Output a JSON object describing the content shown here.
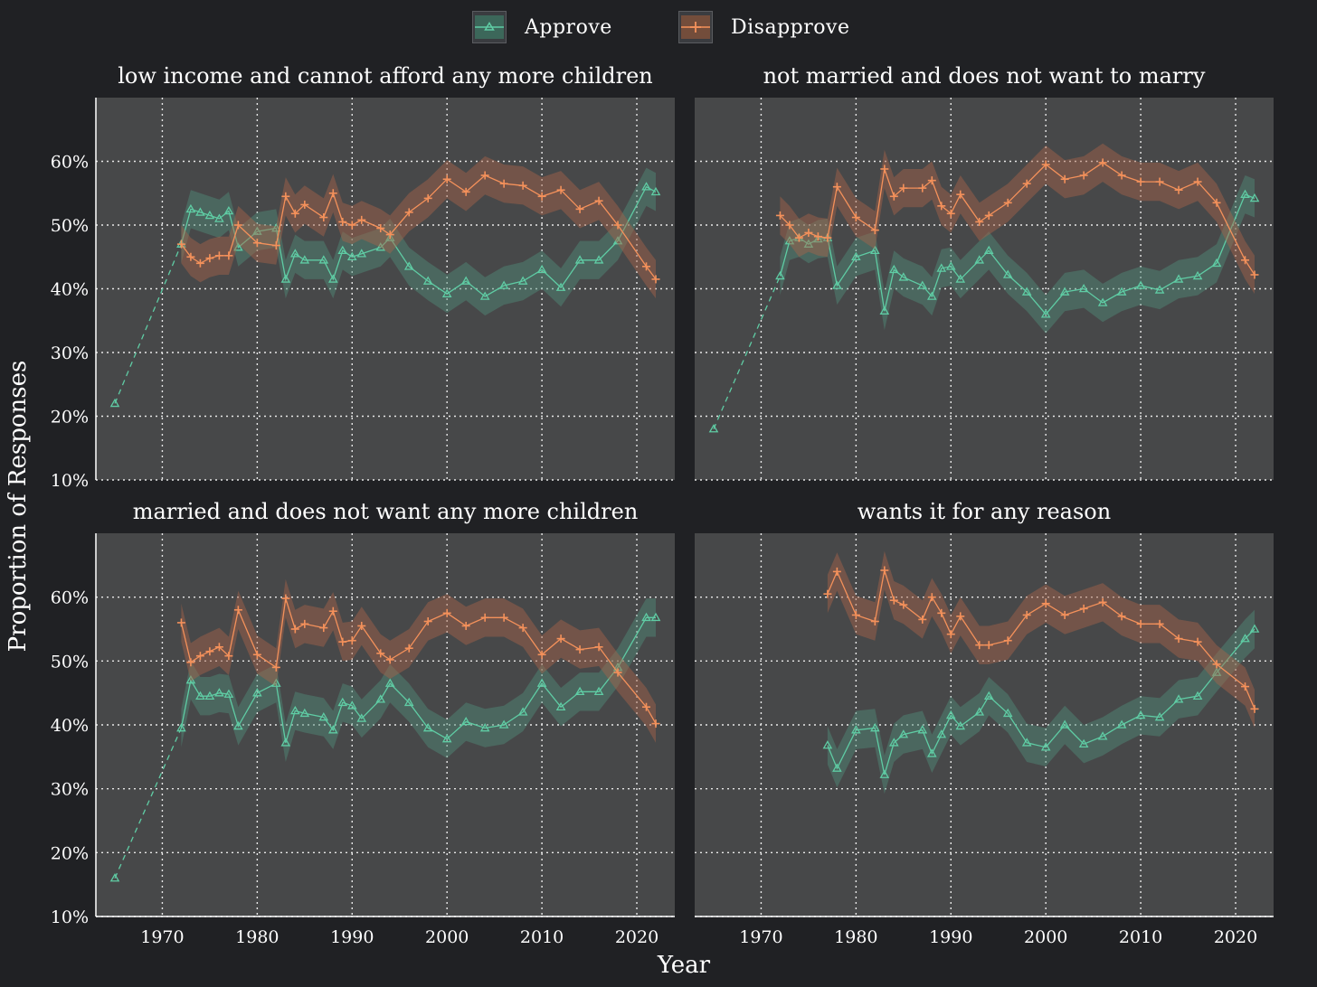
{
  "legend": {
    "approve_label": "Approve",
    "disapprove_label": "Disapprove"
  },
  "colors": {
    "approve": "#5fcca4",
    "disapprove": "#f4915b",
    "background": "#202124",
    "panel": "#474849"
  },
  "chart_data": {
    "type": "line",
    "xlabel": "Year",
    "ylabel": "Proportion of Responses",
    "xlim": [
      1963,
      2024
    ],
    "ylim": [
      10,
      70
    ],
    "x_ticks": [
      1970,
      1980,
      1990,
      2000,
      2010,
      2020
    ],
    "y_ticks": [
      10,
      20,
      30,
      40,
      50,
      60
    ],
    "y_tick_labels": [
      "10%",
      "20%",
      "30%",
      "40%",
      "50%",
      "60%"
    ],
    "grid": true,
    "legend_position": "top",
    "band_halfwidth": 3,
    "panels": [
      {
        "title": "low income and cannot afford any more children",
        "approve": {
          "early_point": [
            1965,
            22
          ],
          "x": [
            1972,
            1973,
            1974,
            1975,
            1976,
            1977,
            1978,
            1980,
            1982,
            1983,
            1984,
            1985,
            1987,
            1988,
            1989,
            1990,
            1991,
            1993,
            1994,
            1996,
            1998,
            2000,
            2002,
            2004,
            2006,
            2008,
            2010,
            2012,
            2014,
            2016,
            2018,
            2021,
            2022
          ],
          "y": [
            47,
            52.5,
            52,
            51.5,
            51,
            52.2,
            46.5,
            49,
            49.5,
            41.5,
            45.5,
            44.5,
            44.5,
            41.5,
            46,
            45,
            45.5,
            46.5,
            48,
            43.5,
            41.2,
            39.2,
            41.2,
            38.8,
            40.5,
            41.2,
            43,
            40.2,
            44.5,
            44.5,
            47.5,
            56,
            55.2
          ]
        },
        "disapprove": {
          "x": [
            1972,
            1973,
            1974,
            1975,
            1976,
            1977,
            1978,
            1980,
            1982,
            1983,
            1984,
            1985,
            1987,
            1988,
            1989,
            1990,
            1991,
            1993,
            1994,
            1996,
            1998,
            2000,
            2002,
            2004,
            2006,
            2008,
            2010,
            2012,
            2014,
            2016,
            2018,
            2021,
            2022
          ],
          "y": [
            47,
            45,
            44,
            44.8,
            45.2,
            45.2,
            50,
            47.2,
            46.8,
            54.5,
            51.8,
            53.2,
            51.2,
            55,
            50.5,
            50,
            50.8,
            49.5,
            48.5,
            52,
            54.2,
            57.2,
            55.2,
            57.8,
            56.5,
            56.2,
            54.5,
            55.5,
            52.5,
            53.8,
            50,
            43.5,
            41.5
          ]
        }
      },
      {
        "title": "not married and does not want to marry",
        "approve": {
          "early_point": [
            1965,
            18
          ],
          "x": [
            1972,
            1973,
            1974,
            1975,
            1976,
            1977,
            1978,
            1980,
            1982,
            1983,
            1984,
            1985,
            1987,
            1988,
            1989,
            1990,
            1991,
            1993,
            1994,
            1996,
            1998,
            2000,
            2002,
            2004,
            2006,
            2008,
            2010,
            2012,
            2014,
            2016,
            2018,
            2021,
            2022
          ],
          "y": [
            42,
            47.5,
            48,
            47,
            47.8,
            48,
            40.5,
            45,
            46,
            36.5,
            43,
            41.8,
            40.5,
            38.8,
            43.2,
            43.5,
            41.5,
            44.5,
            46,
            42.2,
            39.5,
            36,
            39.5,
            40,
            37.8,
            39.5,
            40.5,
            39.8,
            41.5,
            42,
            44,
            54.8,
            54.2
          ]
        },
        "disapprove": {
          "x": [
            1972,
            1973,
            1974,
            1975,
            1976,
            1977,
            1978,
            1980,
            1982,
            1983,
            1984,
            1985,
            1987,
            1988,
            1989,
            1990,
            1991,
            1993,
            1994,
            1996,
            1998,
            2000,
            2002,
            2004,
            2006,
            2008,
            2010,
            2012,
            2014,
            2016,
            2018,
            2021,
            2022
          ],
          "y": [
            51.5,
            50,
            48,
            48.8,
            48.2,
            48,
            56,
            51.2,
            49.2,
            58.8,
            54.5,
            55.8,
            55.8,
            57,
            53,
            51.8,
            54.8,
            50.5,
            51.5,
            53.5,
            56.5,
            59.5,
            57.2,
            57.8,
            59.8,
            57.8,
            56.8,
            56.8,
            55.5,
            56.8,
            53.5,
            44.5,
            42.2
          ]
        }
      },
      {
        "title": "married and does not want any more children",
        "approve": {
          "early_point": [
            1965,
            16
          ],
          "x": [
            1972,
            1973,
            1974,
            1975,
            1976,
            1977,
            1978,
            1980,
            1982,
            1983,
            1984,
            1985,
            1987,
            1988,
            1989,
            1990,
            1991,
            1993,
            1994,
            1996,
            1998,
            2000,
            2002,
            2004,
            2006,
            2008,
            2010,
            2012,
            2014,
            2016,
            2018,
            2021,
            2022
          ],
          "y": [
            39.5,
            47,
            44.5,
            44.5,
            45,
            44.8,
            39.8,
            45,
            46.5,
            37.2,
            42.2,
            41.8,
            41.2,
            39.2,
            43.5,
            43,
            41,
            44,
            46.5,
            43.5,
            39.5,
            37.8,
            40.5,
            39.5,
            40,
            42,
            46.5,
            42.8,
            45.2,
            45.2,
            49,
            56.8,
            56.8
          ]
        },
        "disapprove": {
          "x": [
            1972,
            1973,
            1974,
            1975,
            1976,
            1977,
            1978,
            1980,
            1982,
            1983,
            1984,
            1985,
            1987,
            1988,
            1989,
            1990,
            1991,
            1993,
            1994,
            1996,
            1998,
            2000,
            2002,
            2004,
            2006,
            2008,
            2010,
            2012,
            2014,
            2016,
            2018,
            2021,
            2022
          ],
          "y": [
            56,
            49.8,
            50.8,
            51.5,
            52.2,
            50.8,
            58,
            51,
            49,
            59.8,
            55,
            55.8,
            55.2,
            57.8,
            53,
            53.2,
            55.5,
            51.2,
            50.2,
            52,
            56.2,
            57.5,
            55.5,
            56.8,
            56.8,
            55.2,
            51,
            53.5,
            51.8,
            52.2,
            48.2,
            42.8,
            40.2
          ]
        }
      },
      {
        "title": "wants it for any reason",
        "approve": {
          "early_point": null,
          "x": [
            1977,
            1978,
            1980,
            1982,
            1983,
            1984,
            1985,
            1987,
            1988,
            1989,
            1990,
            1991,
            1993,
            1994,
            1996,
            1998,
            2000,
            2002,
            2004,
            2006,
            2008,
            2010,
            2012,
            2014,
            2016,
            2018,
            2021,
            2022
          ],
          "y": [
            36.8,
            33.2,
            39.2,
            39.5,
            32.2,
            37.2,
            38.5,
            39.2,
            35.5,
            38.5,
            41.5,
            39.8,
            42,
            44.5,
            41.8,
            37.2,
            36.5,
            40,
            37,
            38.2,
            40,
            41.5,
            41.2,
            44,
            44.5,
            48.2,
            53.5,
            55
          ]
        },
        "disapprove": {
          "x": [
            1977,
            1978,
            1980,
            1982,
            1983,
            1984,
            1985,
            1987,
            1988,
            1989,
            1990,
            1991,
            1993,
            1994,
            1996,
            1998,
            2000,
            2002,
            2004,
            2006,
            2008,
            2010,
            2012,
            2014,
            2016,
            2018,
            2021,
            2022
          ],
          "y": [
            60.5,
            64,
            57.2,
            56.2,
            64.2,
            59.5,
            58.8,
            56.5,
            60,
            57.5,
            54.2,
            57,
            52.5,
            52.5,
            53.2,
            57.2,
            59,
            57.2,
            58.2,
            59.2,
            57,
            55.8,
            55.8,
            53.5,
            53,
            49.5,
            46,
            42.5
          ]
        }
      }
    ]
  }
}
